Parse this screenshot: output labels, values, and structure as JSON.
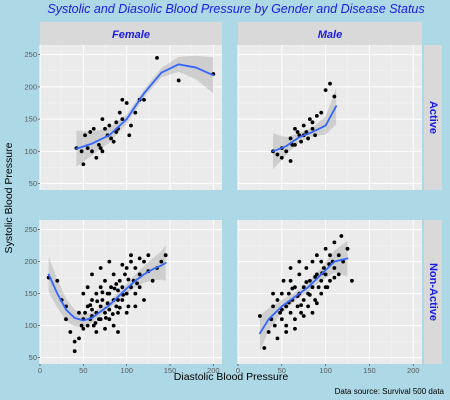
{
  "chart_data": {
    "type": "scatter",
    "title": "Systolic and Diasolic Blood Pressure by Gender and Disease Status",
    "xlabel": "Diastolic Blood Pressure",
    "ylabel": "Systolic Blood Pressure",
    "caption": "Data source: Survival 500 data",
    "columns": [
      "Female",
      "Male"
    ],
    "rows": [
      "Active",
      "Non-Active"
    ],
    "xlim": [
      0,
      210
    ],
    "ylim": [
      40,
      265
    ],
    "x_ticks": [
      0,
      50,
      100,
      150,
      200
    ],
    "y_ticks": [
      50,
      100,
      150,
      200,
      250
    ],
    "grid": true,
    "smooth_color": "#3366ff",
    "point_color": "#000000",
    "panels": [
      {
        "column": "Female",
        "row": "Active",
        "points": [
          [
            42,
            105
          ],
          [
            48,
            100
          ],
          [
            50,
            80
          ],
          [
            52,
            125
          ],
          [
            55,
            105
          ],
          [
            58,
            130
          ],
          [
            60,
            100
          ],
          [
            62,
            135
          ],
          [
            65,
            90
          ],
          [
            68,
            110
          ],
          [
            70,
            105
          ],
          [
            72,
            150
          ],
          [
            75,
            135
          ],
          [
            78,
            125
          ],
          [
            80,
            140
          ],
          [
            82,
            120
          ],
          [
            85,
            115
          ],
          [
            88,
            130
          ],
          [
            90,
            135
          ],
          [
            92,
            160
          ],
          [
            95,
            150
          ],
          [
            100,
            175
          ],
          [
            103,
            125
          ],
          [
            105,
            140
          ],
          [
            110,
            160
          ],
          [
            115,
            180
          ],
          [
            120,
            180
          ],
          [
            135,
            245
          ],
          [
            160,
            210
          ],
          [
            200,
            220
          ],
          [
            72,
            100
          ],
          [
            88,
            145
          ],
          [
            95,
            180
          ]
        ],
        "smooth": [
          [
            42,
            104
          ],
          [
            60,
            112
          ],
          [
            80,
            125
          ],
          [
            100,
            150
          ],
          [
            120,
            190
          ],
          [
            140,
            222
          ],
          [
            160,
            235
          ],
          [
            180,
            230
          ],
          [
            200,
            218
          ]
        ]
      },
      {
        "column": "Male",
        "row": "Active",
        "points": [
          [
            40,
            100
          ],
          [
            45,
            95
          ],
          [
            50,
            105
          ],
          [
            55,
            100
          ],
          [
            60,
            120
          ],
          [
            62,
            110
          ],
          [
            65,
            135
          ],
          [
            68,
            130
          ],
          [
            70,
            125
          ],
          [
            72,
            115
          ],
          [
            75,
            140
          ],
          [
            78,
            130
          ],
          [
            80,
            120
          ],
          [
            82,
            150
          ],
          [
            85,
            135
          ],
          [
            88,
            125
          ],
          [
            90,
            155
          ],
          [
            95,
            160
          ],
          [
            100,
            195
          ],
          [
            105,
            205
          ],
          [
            110,
            185
          ],
          [
            65,
            110
          ],
          [
            75,
            125
          ],
          [
            85,
            145
          ],
          [
            50,
            90
          ],
          [
            60,
            85
          ]
        ],
        "smooth": [
          [
            40,
            100
          ],
          [
            55,
            108
          ],
          [
            70,
            122
          ],
          [
            85,
            130
          ],
          [
            100,
            140
          ],
          [
            112,
            170
          ]
        ]
      },
      {
        "column": "Female",
        "row": "Non-Active",
        "points": [
          [
            10,
            175
          ],
          [
            20,
            170
          ],
          [
            25,
            140
          ],
          [
            30,
            110
          ],
          [
            35,
            90
          ],
          [
            40,
            75
          ],
          [
            40,
            60
          ],
          [
            45,
            80
          ],
          [
            48,
            100
          ],
          [
            50,
            110
          ],
          [
            50,
            95
          ],
          [
            52,
            120
          ],
          [
            55,
            100
          ],
          [
            55,
            130
          ],
          [
            58,
            110
          ],
          [
            60,
            125
          ],
          [
            60,
            140
          ],
          [
            62,
            100
          ],
          [
            65,
            120
          ],
          [
            65,
            150
          ],
          [
            68,
            110
          ],
          [
            70,
            130
          ],
          [
            70,
            160
          ],
          [
            72,
            140
          ],
          [
            75,
            120
          ],
          [
            75,
            170
          ],
          [
            78,
            135
          ],
          [
            80,
            150
          ],
          [
            80,
            110
          ],
          [
            82,
            160
          ],
          [
            85,
            140
          ],
          [
            85,
            180
          ],
          [
            88,
            130
          ],
          [
            90,
            155
          ],
          [
            90,
            120
          ],
          [
            92,
            170
          ],
          [
            95,
            160
          ],
          [
            95,
            140
          ],
          [
            98,
            180
          ],
          [
            100,
            150
          ],
          [
            100,
            190
          ],
          [
            102,
            130
          ],
          [
            105,
            160
          ],
          [
            105,
            200
          ],
          [
            108,
            170
          ],
          [
            110,
            150
          ],
          [
            110,
            190
          ],
          [
            115,
            180
          ],
          [
            115,
            160
          ],
          [
            120,
            200
          ],
          [
            125,
            210
          ],
          [
            130,
            170
          ],
          [
            135,
            190
          ],
          [
            140,
            200
          ],
          [
            145,
            210
          ],
          [
            60,
            180
          ],
          [
            70,
            190
          ],
          [
            80,
            200
          ],
          [
            85,
            100
          ],
          [
            90,
            90
          ],
          [
            65,
            90
          ],
          [
            75,
            95
          ],
          [
            100,
            120
          ],
          [
            110,
            130
          ],
          [
            120,
            140
          ],
          [
            50,
            150
          ],
          [
            55,
            160
          ],
          [
            45,
            120
          ],
          [
            30,
            130
          ],
          [
            95,
            195
          ],
          [
            105,
            210
          ],
          [
            115,
            205
          ],
          [
            125,
            185
          ],
          [
            70,
            110
          ],
          [
            80,
            125
          ],
          [
            90,
            140
          ],
          [
            60,
            115
          ],
          [
            88,
            165
          ],
          [
            78,
            150
          ],
          [
            66,
            138
          ],
          [
            92,
            128
          ],
          [
            102,
            172
          ],
          [
            72,
            152
          ],
          [
            84,
            118
          ],
          [
            96,
            148
          ],
          [
            58,
            132
          ],
          [
            112,
            166
          ],
          [
            64,
            104
          ],
          [
            76,
            112
          ],
          [
            86,
            158
          ]
        ],
        "smooth": [
          [
            10,
            180
          ],
          [
            20,
            150
          ],
          [
            30,
            125
          ],
          [
            40,
            112
          ],
          [
            50,
            108
          ],
          [
            60,
            112
          ],
          [
            70,
            122
          ],
          [
            80,
            132
          ],
          [
            90,
            145
          ],
          [
            100,
            158
          ],
          [
            110,
            170
          ],
          [
            120,
            180
          ],
          [
            130,
            188
          ],
          [
            140,
            194
          ],
          [
            145,
            198
          ]
        ]
      },
      {
        "column": "Male",
        "row": "Non-Active",
        "points": [
          [
            25,
            115
          ],
          [
            30,
            65
          ],
          [
            35,
            90
          ],
          [
            38,
            110
          ],
          [
            40,
            130
          ],
          [
            42,
            100
          ],
          [
            45,
            140
          ],
          [
            48,
            120
          ],
          [
            50,
            150
          ],
          [
            50,
            110
          ],
          [
            52,
            170
          ],
          [
            55,
            130
          ],
          [
            55,
            100
          ],
          [
            58,
            150
          ],
          [
            60,
            120
          ],
          [
            60,
            170
          ],
          [
            62,
            140
          ],
          [
            65,
            160
          ],
          [
            65,
            110
          ],
          [
            68,
            130
          ],
          [
            70,
            150
          ],
          [
            70,
            180
          ],
          [
            72,
            120
          ],
          [
            75,
            160
          ],
          [
            75,
            140
          ],
          [
            78,
            190
          ],
          [
            80,
            150
          ],
          [
            80,
            130
          ],
          [
            82,
            170
          ],
          [
            85,
            160
          ],
          [
            85,
            200
          ],
          [
            88,
            140
          ],
          [
            90,
            180
          ],
          [
            90,
            210
          ],
          [
            92,
            160
          ],
          [
            95,
            200
          ],
          [
            95,
            170
          ],
          [
            98,
            190
          ],
          [
            100,
            220
          ],
          [
            100,
            180
          ],
          [
            102,
            160
          ],
          [
            105,
            210
          ],
          [
            108,
            200
          ],
          [
            110,
            230
          ],
          [
            110,
            190
          ],
          [
            115,
            210
          ],
          [
            118,
            240
          ],
          [
            120,
            200
          ],
          [
            125,
            220
          ],
          [
            130,
            170
          ],
          [
            45,
            80
          ],
          [
            55,
            90
          ],
          [
            65,
            95
          ],
          [
            40,
            150
          ],
          [
            60,
            190
          ],
          [
            70,
            200
          ],
          [
            85,
            120
          ],
          [
            95,
            150
          ],
          [
            105,
            170
          ],
          [
            115,
            180
          ],
          [
            50,
            125
          ],
          [
            75,
            115
          ],
          [
            90,
            135
          ],
          [
            100,
            160
          ],
          [
            110,
            175
          ],
          [
            62,
            158
          ],
          [
            78,
            168
          ],
          [
            88,
            176
          ],
          [
            58,
            136
          ],
          [
            68,
            146
          ],
          [
            82,
            148
          ],
          [
            96,
            182
          ],
          [
            104,
            196
          ],
          [
            72,
            132
          ]
        ],
        "smooth": [
          [
            25,
            88
          ],
          [
            35,
            110
          ],
          [
            50,
            130
          ],
          [
            65,
            145
          ],
          [
            80,
            160
          ],
          [
            95,
            180
          ],
          [
            110,
            200
          ],
          [
            125,
            205
          ]
        ]
      }
    ]
  }
}
